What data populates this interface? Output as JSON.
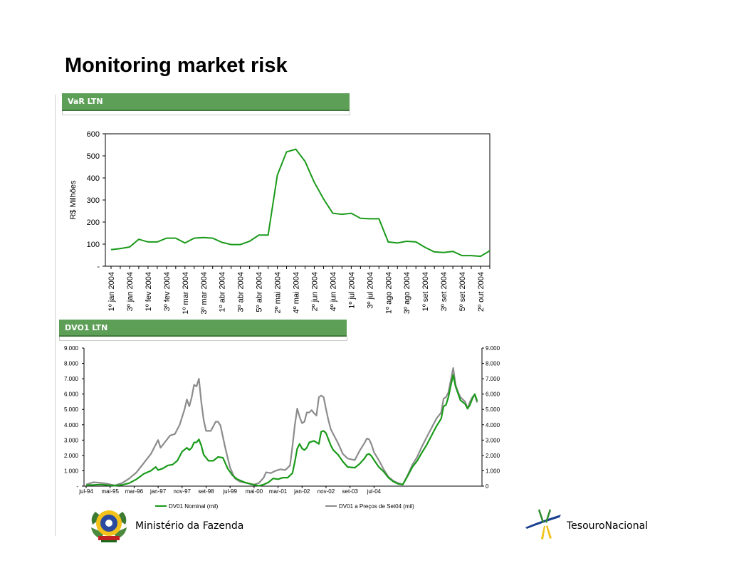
{
  "page": {
    "title": "Monitoring market risk",
    "panel1_label": "VaR LTN",
    "panel2_label": "DVO1 LTN",
    "footer_left": "Ministério da Fazenda",
    "footer_right": "TesouroNacional"
  },
  "colors": {
    "panel_green": "#5e9f58",
    "line_green": "#1a9a1a",
    "line_gray": "#8c8c8c"
  },
  "icons": [
    "coat-of-arms-icon",
    "tesouro-nacional-logo-icon"
  ],
  "chart_data": [
    {
      "type": "line",
      "title": "",
      "xlabel": "",
      "ylabel": "R$ Milhões",
      "ylim": [
        0,
        600
      ],
      "yticks": [
        "-",
        "100",
        "200",
        "300",
        "400",
        "500",
        "600"
      ],
      "grid": false,
      "xtick_labels": [
        "1º jan 2004",
        "3º jan 2004",
        "1º fev 2004",
        "3º fev 2004",
        "1º mar 2004",
        "3º mar 2004",
        "1º abr 2004",
        "3º abr 2004",
        "5º abr 2004",
        "2º mai 2004",
        "4º mai 2004",
        "2º jun 2004",
        "4º jun 2004",
        "1º jul 2004",
        "3º jul 2004",
        "1º ago 2004",
        "3º ago 2004",
        "1º set 2004",
        "3º set 2004",
        "5º set 2004",
        "2º out 2004"
      ],
      "series": [
        {
          "values": [
            75,
            80,
            87,
            122,
            110,
            110,
            127,
            127,
            105,
            127,
            130,
            127,
            108,
            98,
            98,
            113,
            141,
            141,
            413,
            518,
            530,
            475,
            380,
            305,
            240,
            235,
            240,
            217,
            215,
            215,
            110,
            105,
            113,
            110,
            85,
            65,
            62,
            67,
            48,
            48,
            45,
            70
          ]
        }
      ]
    },
    {
      "type": "line",
      "title": "",
      "ylim": [
        0,
        9000
      ],
      "yticks_left": [
        "-",
        "1.000",
        "2.000",
        "3.000",
        "4.000",
        "5.000",
        "6.000",
        "7.000",
        "8.000",
        "9.000"
      ],
      "yticks_right": [
        "0",
        "1.000",
        "2.000",
        "3.000",
        "4.000",
        "5.000",
        "6.000",
        "7.000",
        "8.000",
        "9.000"
      ],
      "grid": false,
      "legend_position": "bottom",
      "x_labels": [
        "jul-94",
        "mai-95",
        "mar-96",
        "jan-97",
        "nov-97",
        "set-98",
        "jul-99",
        "mai-00",
        "mar-01",
        "jan-02",
        "nov-02",
        "set-03",
        "jul-04"
      ],
      "series": [
        {
          "name": "DV01 Nominal (mil)",
          "points": [
            [
              0,
              50
            ],
            [
              3,
              80
            ],
            [
              6,
              100
            ],
            [
              9,
              60
            ],
            [
              12,
              30
            ],
            [
              15,
              80
            ],
            [
              18,
              200
            ],
            [
              21,
              450
            ],
            [
              24,
              800
            ],
            [
              27,
              1000
            ],
            [
              29,
              1250
            ],
            [
              30,
              1050
            ],
            [
              32,
              1150
            ],
            [
              34,
              1350
            ],
            [
              36,
              1400
            ],
            [
              38,
              1650
            ],
            [
              40,
              2250
            ],
            [
              42,
              2500
            ],
            [
              43,
              2350
            ],
            [
              44,
              2500
            ],
            [
              45,
              2850
            ],
            [
              46,
              2850
            ],
            [
              47,
              3050
            ],
            [
              48,
              2650
            ],
            [
              49,
              2050
            ],
            [
              51,
              1650
            ],
            [
              53,
              1650
            ],
            [
              55,
              1900
            ],
            [
              57,
              1850
            ],
            [
              59,
              1150
            ],
            [
              61,
              700
            ],
            [
              63,
              450
            ],
            [
              66,
              250
            ],
            [
              69,
              120
            ],
            [
              72,
              20
            ],
            [
              74,
              100
            ],
            [
              76,
              250
            ],
            [
              78,
              500
            ],
            [
              80,
              450
            ],
            [
              82,
              550
            ],
            [
              84,
              550
            ],
            [
              86,
              850
            ],
            [
              87,
              1600
            ],
            [
              88,
              2450
            ],
            [
              89,
              2750
            ],
            [
              90,
              2450
            ],
            [
              91,
              2350
            ],
            [
              92,
              2500
            ],
            [
              93,
              2850
            ],
            [
              95,
              2950
            ],
            [
              96,
              2850
            ],
            [
              97,
              2750
            ],
            [
              98,
              3550
            ],
            [
              99,
              3600
            ],
            [
              100,
              3450
            ],
            [
              101,
              3050
            ],
            [
              102,
              2650
            ],
            [
              103,
              2350
            ],
            [
              105,
              2050
            ],
            [
              107,
              1600
            ],
            [
              109,
              1250
            ],
            [
              112,
              1200
            ],
            [
              114,
              1450
            ],
            [
              116,
              1800
            ],
            [
              117,
              2050
            ],
            [
              118,
              2100
            ],
            [
              119,
              1950
            ],
            [
              120,
              1700
            ],
            [
              122,
              1250
            ],
            [
              124,
              950
            ],
            [
              126,
              550
            ],
            [
              128,
              300
            ],
            [
              130,
              150
            ],
            [
              132,
              100
            ],
            [
              134,
              650
            ],
            [
              136,
              1250
            ],
            [
              138,
              1650
            ],
            [
              140,
              2200
            ],
            [
              142,
              2700
            ],
            [
              144,
              3300
            ],
            [
              146,
              3900
            ],
            [
              148,
              4400
            ],
            [
              149,
              5200
            ],
            [
              150,
              5300
            ],
            [
              151,
              5800
            ],
            [
              152,
              6550
            ],
            [
              153,
              7250
            ],
            [
              154,
              6500
            ],
            [
              155,
              6050
            ],
            [
              156,
              5600
            ],
            [
              158,
              5350
            ],
            [
              159,
              5050
            ],
            [
              160,
              5300
            ],
            [
              161,
              5700
            ],
            [
              162,
              6000
            ],
            [
              163,
              5550
            ]
          ]
        },
        {
          "name": "DV01 a Preços de Set04 (mil)",
          "points": [
            [
              0,
              100
            ],
            [
              3,
              250
            ],
            [
              6,
              220
            ],
            [
              9,
              150
            ],
            [
              12,
              50
            ],
            [
              15,
              200
            ],
            [
              18,
              500
            ],
            [
              21,
              900
            ],
            [
              24,
              1500
            ],
            [
              27,
              2100
            ],
            [
              29,
              2700
            ],
            [
              30,
              3000
            ],
            [
              31,
              2500
            ],
            [
              33,
              2900
            ],
            [
              35,
              3300
            ],
            [
              37,
              3400
            ],
            [
              39,
              4000
            ],
            [
              41,
              5000
            ],
            [
              42,
              5650
            ],
            [
              43,
              5200
            ],
            [
              44,
              5800
            ],
            [
              45,
              6600
            ],
            [
              46,
              6500
            ],
            [
              47,
              7000
            ],
            [
              48,
              5500
            ],
            [
              49,
              4300
            ],
            [
              50,
              3600
            ],
            [
              52,
              3600
            ],
            [
              54,
              4200
            ],
            [
              55,
              4200
            ],
            [
              56,
              3950
            ],
            [
              58,
              2500
            ],
            [
              60,
              1200
            ],
            [
              62,
              500
            ],
            [
              64,
              300
            ],
            [
              67,
              200
            ],
            [
              70,
              100
            ],
            [
              72,
              200
            ],
            [
              74,
              550
            ],
            [
              75,
              900
            ],
            [
              77,
              850
            ],
            [
              79,
              1000
            ],
            [
              81,
              1100
            ],
            [
              83,
              1050
            ],
            [
              85,
              1350
            ],
            [
              86,
              2600
            ],
            [
              87,
              4000
            ],
            [
              88,
              5050
            ],
            [
              89,
              4500
            ],
            [
              90,
              4100
            ],
            [
              91,
              4200
            ],
            [
              92,
              4800
            ],
            [
              93,
              4800
            ],
            [
              94,
              4950
            ],
            [
              95,
              4750
            ],
            [
              96,
              4600
            ],
            [
              97,
              5800
            ],
            [
              98,
              5900
            ],
            [
              99,
              5800
            ],
            [
              100,
              5000
            ],
            [
              101,
              4300
            ],
            [
              102,
              3700
            ],
            [
              103,
              3400
            ],
            [
              105,
              2800
            ],
            [
              107,
              2100
            ],
            [
              109,
              1800
            ],
            [
              112,
              1700
            ],
            [
              114,
              2300
            ],
            [
              116,
              2800
            ],
            [
              117,
              3100
            ],
            [
              118,
              3050
            ],
            [
              119,
              2700
            ],
            [
              120,
              2200
            ],
            [
              122,
              1700
            ],
            [
              124,
              1100
            ],
            [
              126,
              600
            ],
            [
              128,
              350
            ],
            [
              130,
              200
            ],
            [
              132,
              100
            ],
            [
              134,
              700
            ],
            [
              136,
              1400
            ],
            [
              138,
              1900
            ],
            [
              140,
              2600
            ],
            [
              142,
              3200
            ],
            [
              144,
              3800
            ],
            [
              146,
              4400
            ],
            [
              148,
              4800
            ],
            [
              149,
              5700
            ],
            [
              150,
              5800
            ],
            [
              151,
              6100
            ],
            [
              152,
              6900
            ],
            [
              153,
              7700
            ],
            [
              154,
              6600
            ],
            [
              155,
              6150
            ],
            [
              156,
              5800
            ],
            [
              158,
              5500
            ],
            [
              159,
              5050
            ],
            [
              160,
              5500
            ],
            [
              161,
              5800
            ],
            [
              162,
              5950
            ],
            [
              163,
              5450
            ]
          ]
        }
      ]
    }
  ]
}
